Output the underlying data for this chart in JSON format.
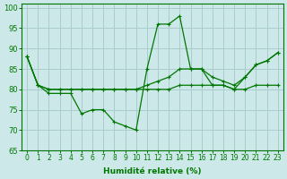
{
  "xlabel": "Humidité relative (%)",
  "background_color": "#cce8e8",
  "grid_color": "#aacccc",
  "line_color": "#007700",
  "markersize": 2.5,
  "linewidth": 0.9,
  "xlim": [
    -0.5,
    23.5
  ],
  "ylim": [
    65,
    101
  ],
  "yticks": [
    65,
    70,
    75,
    80,
    85,
    90,
    95,
    100
  ],
  "xticks": [
    0,
    1,
    2,
    3,
    4,
    5,
    6,
    7,
    8,
    9,
    10,
    11,
    12,
    13,
    14,
    15,
    16,
    17,
    18,
    19,
    20,
    21,
    22,
    23
  ],
  "series": [
    [
      88,
      81,
      79,
      79,
      79,
      74,
      75,
      75,
      72,
      71,
      70,
      85,
      96,
      96,
      98,
      85,
      85,
      81,
      81,
      80,
      83,
      86,
      87,
      89
    ],
    [
      88,
      81,
      80,
      80,
      80,
      80,
      80,
      80,
      80,
      80,
      80,
      81,
      82,
      83,
      85,
      85,
      85,
      83,
      82,
      81,
      83,
      86,
      87,
      89
    ],
    [
      88,
      81,
      80,
      80,
      80,
      80,
      80,
      80,
      80,
      80,
      80,
      80,
      80,
      80,
      81,
      81,
      81,
      81,
      81,
      80,
      80,
      81,
      81,
      81
    ]
  ]
}
